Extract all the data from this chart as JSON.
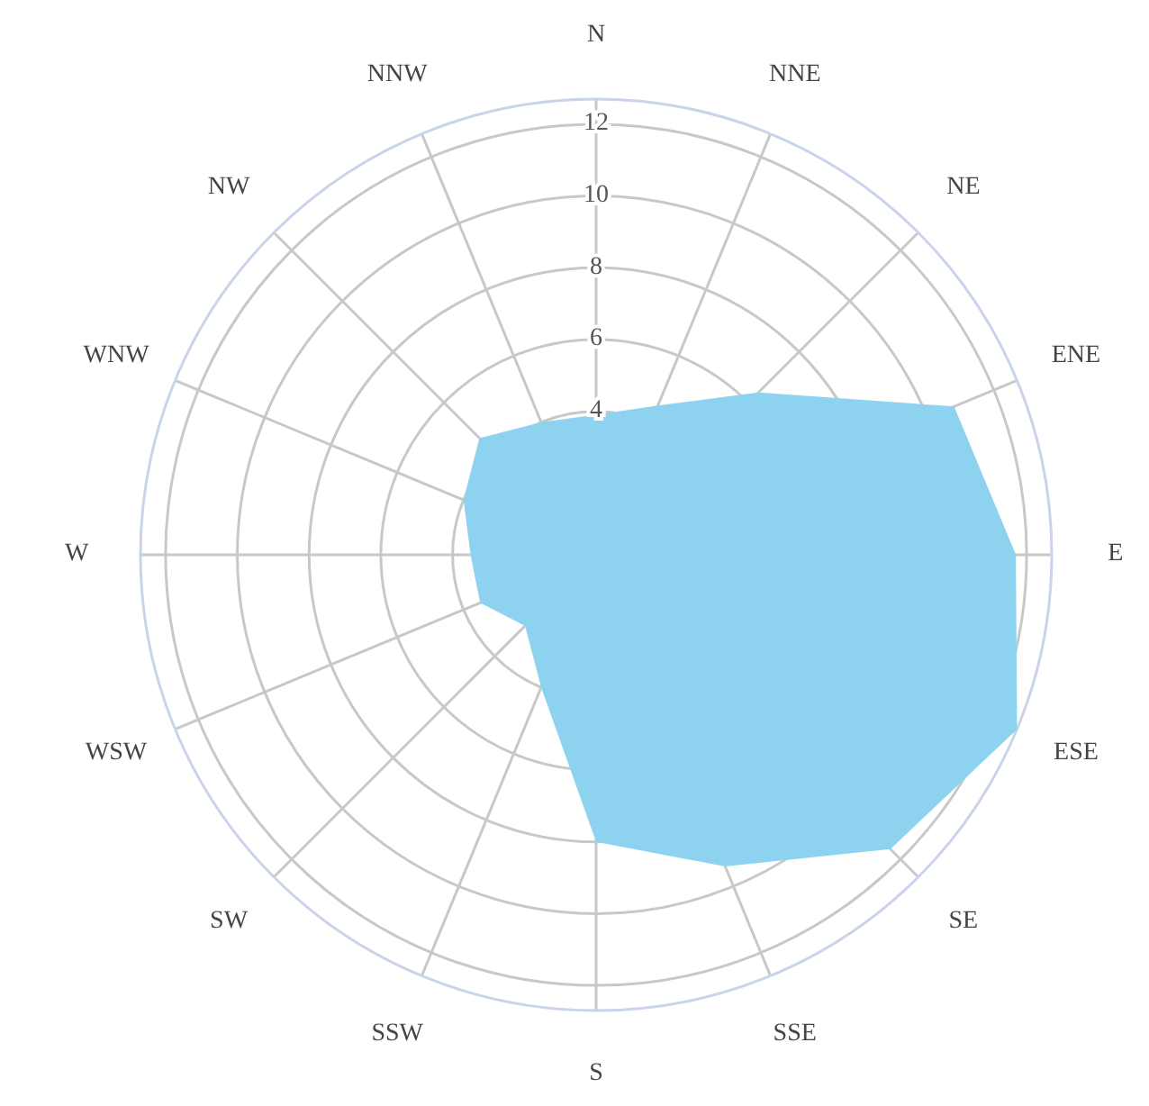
{
  "chart_data": {
    "type": "radar",
    "categories": [
      "N",
      "NNE",
      "NE",
      "ENE",
      "E",
      "ESE",
      "SE",
      "SSE",
      "S",
      "SSW",
      "SW",
      "WSW",
      "W",
      "WNW",
      "NW",
      "NNW"
    ],
    "series": [
      {
        "color": "#8dd3f0",
        "values": [
          3.9,
          4.5,
          6.4,
          10.8,
          11.7,
          12.7,
          11.6,
          9.4,
          8.0,
          4.0,
          2.8,
          3.5,
          3.5,
          4.0,
          4.6,
          4.0
        ]
      }
    ],
    "ylim": [
      0,
      12.7
    ],
    "yticks": [
      4,
      6,
      8,
      10,
      12
    ],
    "grid": true
  }
}
